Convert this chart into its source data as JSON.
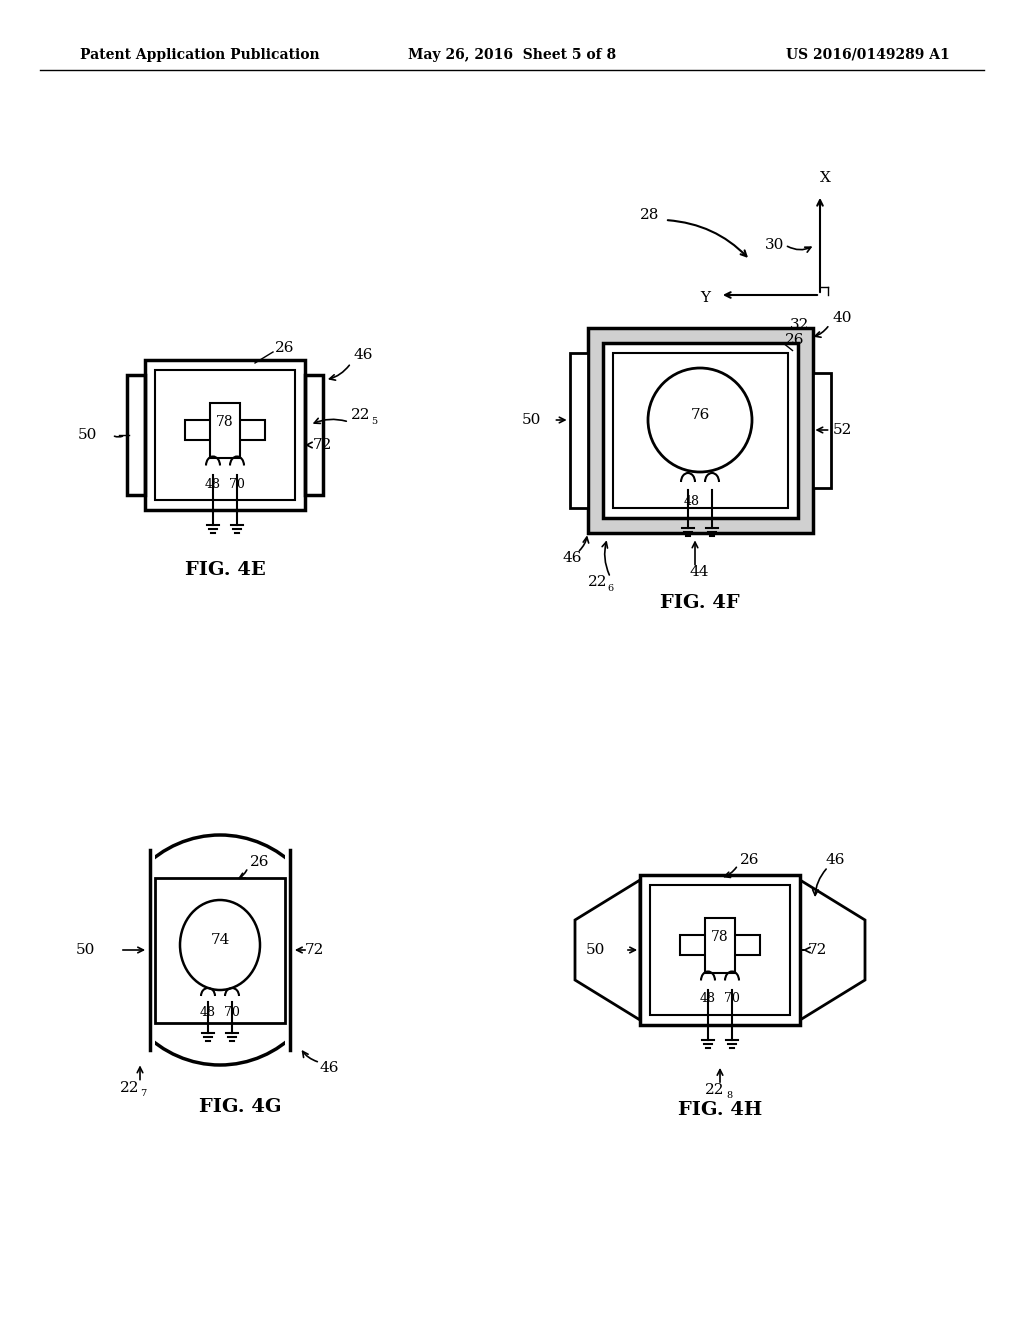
{
  "title_left": "Patent Application Publication",
  "title_center": "May 26, 2016  Sheet 5 of 8",
  "title_right": "US 2016/0149289 A1",
  "background": "#ffffff",
  "fig_width": 10.24,
  "fig_height": 13.2
}
